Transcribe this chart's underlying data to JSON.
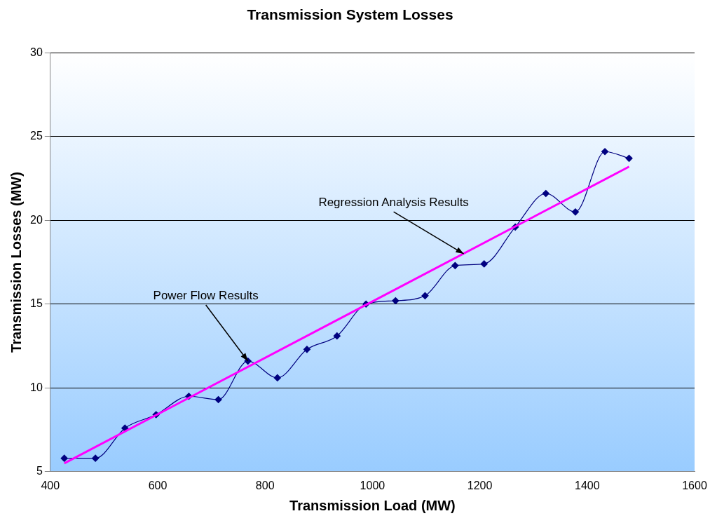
{
  "chart_data": {
    "type": "line",
    "title": "Transmission System Losses",
    "xlabel": "Transmission Load (MW)",
    "ylabel": "Transmission Losses (MW)",
    "series": [
      {
        "type": "line",
        "color": "#000080",
        "marker": "diamond",
        "x": [
          426,
          484,
          539,
          597,
          658,
          713,
          768,
          823,
          878,
          934,
          988,
          1043,
          1098,
          1154,
          1208,
          1266,
          1323,
          1378,
          1433,
          1478
        ],
        "values": [
          5.8,
          5.8,
          7.6,
          8.4,
          9.5,
          9.3,
          11.6,
          10.6,
          12.3,
          13.1,
          15.0,
          15.2,
          15.5,
          17.3,
          17.4,
          19.6,
          21.6,
          20.5,
          24.1,
          23.7
        ]
      },
      {
        "type": "line",
        "color": "#ff00ff",
        "marker": "none",
        "x": [
          426,
          1478
        ],
        "values": [
          5.5,
          23.2
        ]
      }
    ],
    "xlim": [
      400,
      1600
    ],
    "xticks": [
      400,
      600,
      800,
      1000,
      1200,
      1400,
      1600
    ],
    "ylim": [
      5,
      30
    ],
    "yticks": [
      5,
      10,
      15,
      20,
      25,
      30
    ],
    "grid": "y",
    "legend": false,
    "annotations": [
      {
        "text": "Power Flow Results",
        "x": 768,
        "y": 11.6
      },
      {
        "text": "Regression Analysis Results",
        "x": 1170,
        "y": 18.0
      }
    ]
  }
}
